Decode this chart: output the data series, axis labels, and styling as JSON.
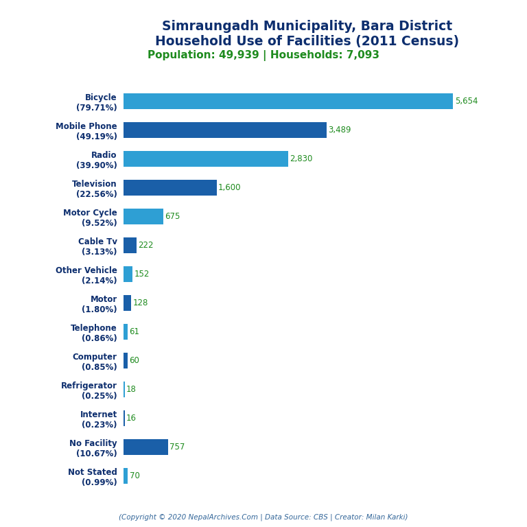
{
  "title_line1": "Simraungadh Municipality, Bara District",
  "title_line2": "Household Use of Facilities (2011 Census)",
  "subtitle": "Population: 49,939 | Households: 7,093",
  "footer": "(Copyright © 2020 NepalArchives.Com | Data Source: CBS | Creator: Milan Karki)",
  "categories": [
    "Bicycle\n(79.71%)",
    "Mobile Phone\n(49.19%)",
    "Radio\n(39.90%)",
    "Television\n(22.56%)",
    "Motor Cycle\n(9.52%)",
    "Cable Tv\n(3.13%)",
    "Other Vehicle\n(2.14%)",
    "Motor\n(1.80%)",
    "Telephone\n(0.86%)",
    "Computer\n(0.85%)",
    "Refrigerator\n(0.25%)",
    "Internet\n(0.23%)",
    "No Facility\n(10.67%)",
    "Not Stated\n(0.99%)"
  ],
  "values": [
    5654,
    3489,
    2830,
    1600,
    675,
    222,
    152,
    128,
    61,
    60,
    18,
    16,
    757,
    70
  ],
  "value_labels": [
    "5,654",
    "3,489",
    "2,830",
    "1,600",
    "675",
    "222",
    "152",
    "128",
    "61",
    "60",
    "18",
    "16",
    "757",
    "70"
  ],
  "bar_colors": [
    "#2e9fd4",
    "#1a5fa8",
    "#2e9fd4",
    "#1a5fa8",
    "#2e9fd4",
    "#1a5fa8",
    "#2e9fd4",
    "#1a5fa8",
    "#2e9fd4",
    "#1a5fa8",
    "#2e9fd4",
    "#1a5fa8",
    "#1a5fa8",
    "#2e9fd4"
  ],
  "title_color": "#0d2e6e",
  "subtitle_color": "#1e8b1e",
  "footer_color": "#336699",
  "value_color": "#1e8b1e",
  "label_color": "#0d2e6e",
  "background_color": "#ffffff",
  "xlim": [
    0,
    6300
  ],
  "bar_height": 0.55,
  "figsize": [
    7.68,
    7.68
  ],
  "dpi": 100
}
